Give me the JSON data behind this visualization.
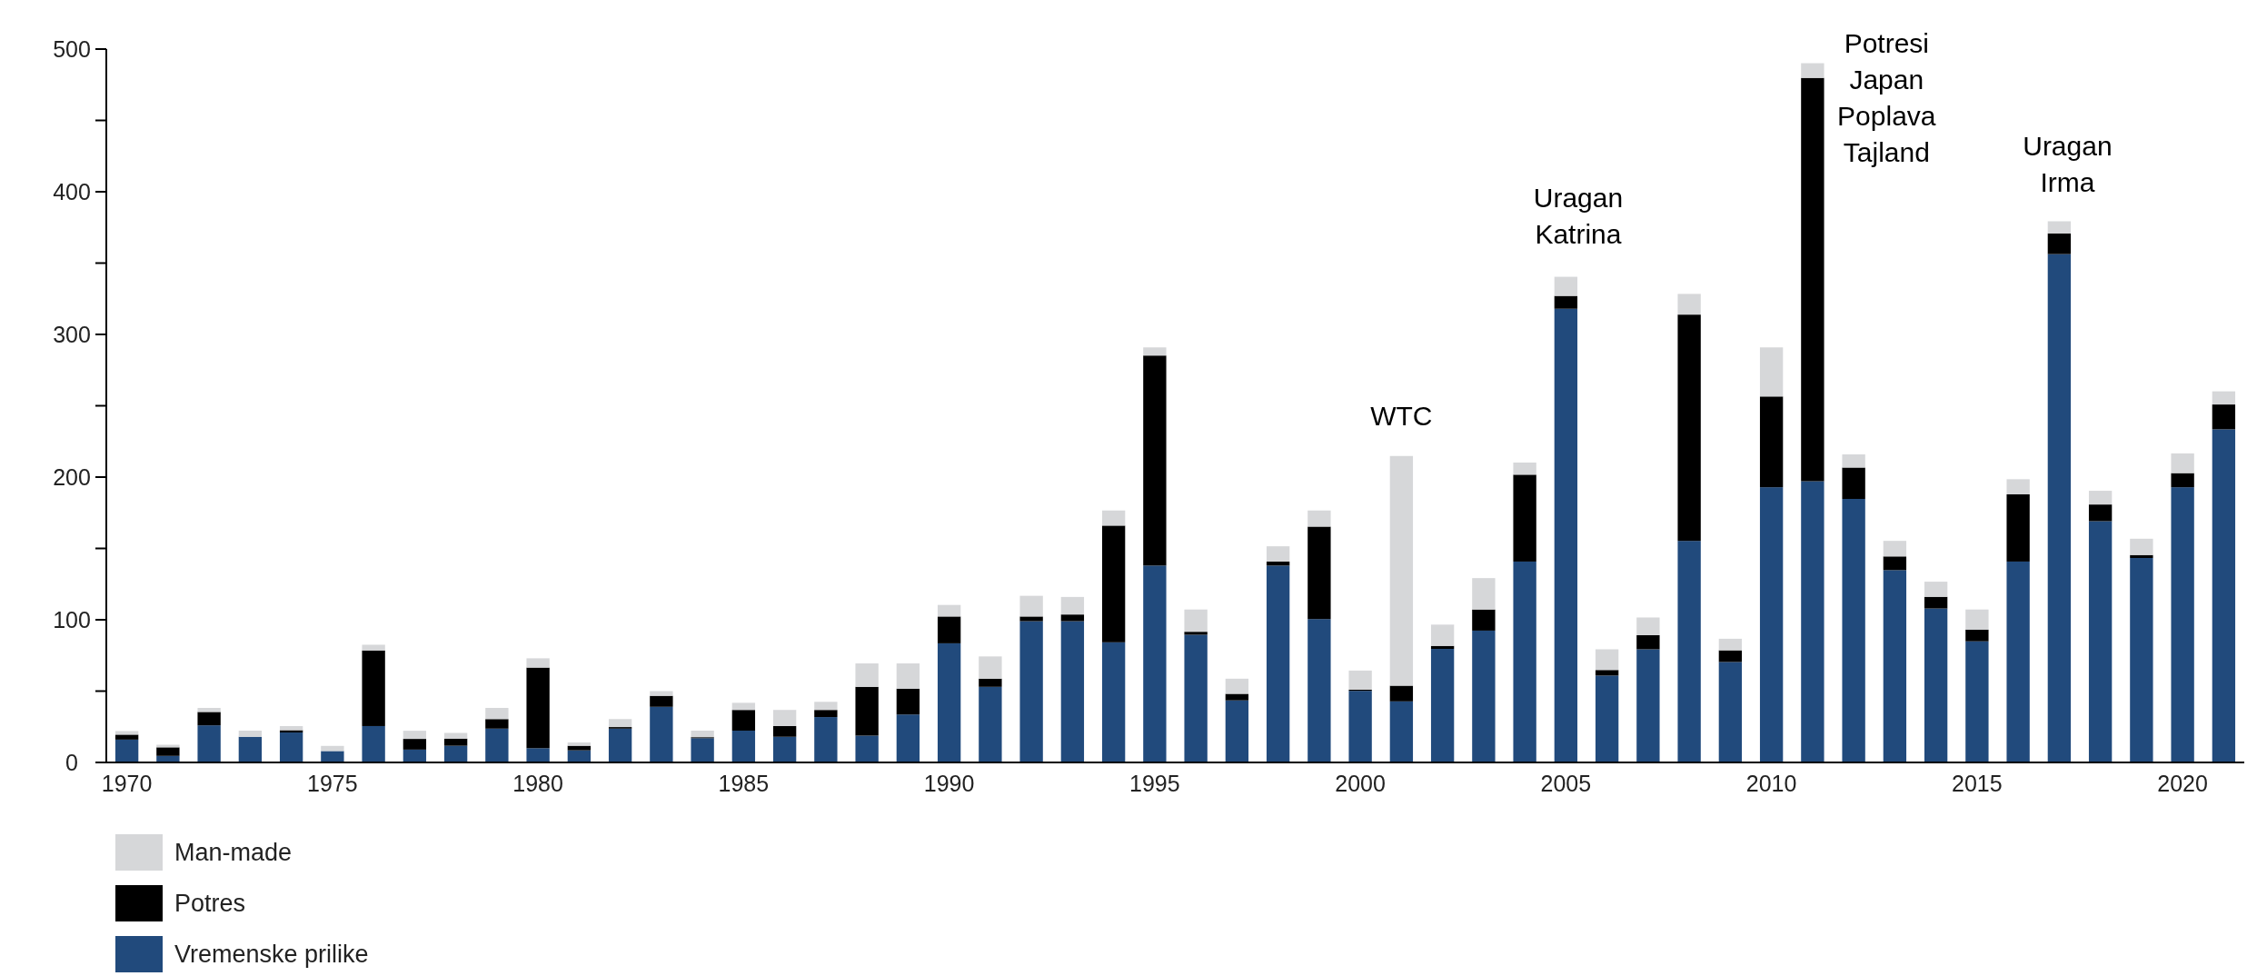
{
  "chart_data": {
    "type": "bar",
    "stacked": true,
    "categories": [
      "1970",
      null,
      null,
      null,
      null,
      "1975",
      null,
      null,
      null,
      null,
      "1980",
      null,
      null,
      null,
      null,
      "1985",
      null,
      null,
      null,
      null,
      "1990",
      null,
      null,
      null,
      null,
      "1995",
      null,
      null,
      null,
      null,
      "2000",
      null,
      null,
      null,
      null,
      "2005",
      null,
      null,
      null,
      null,
      "2010",
      null,
      null,
      null,
      null,
      "2015",
      null,
      null,
      null,
      null,
      "2020",
      null
    ],
    "series": [
      {
        "name": "Vremenske prilike",
        "color": "#214a7c",
        "values": [
          16,
          4.6,
          26,
          18,
          21,
          8,
          25.5,
          9,
          11.7,
          23.7,
          10,
          8.5,
          23.7,
          39,
          17,
          22.3,
          18,
          31.8,
          18.8,
          33.6,
          83.5,
          53,
          99,
          99,
          84.2,
          138,
          89.5,
          43.5,
          138,
          100.5,
          50.2,
          42.8,
          79.6,
          92.4,
          140.8,
          318,
          60.9,
          79.3,
          155.3,
          70.4,
          192.9,
          197.1,
          184.7,
          134.8,
          107.9,
          84.9,
          140.8,
          356.3,
          169.1,
          143.3,
          192.9,
          233.5
        ]
      },
      {
        "name": "Potres",
        "color": "#000000",
        "values": [
          3.5,
          6,
          9.4,
          0,
          1.6,
          0,
          53,
          7.5,
          5,
          6.7,
          56.5,
          3.2,
          1.1,
          7.7,
          0.7,
          14.5,
          7.5,
          5,
          34.2,
          18.1,
          18.8,
          5.7,
          3.3,
          4.7,
          81.8,
          147.2,
          2.1,
          4.6,
          2.8,
          64.8,
          0.8,
          11,
          2.1,
          14.8,
          60.9,
          9,
          3.9,
          9.9,
          158.6,
          8.2,
          63.6,
          282.7,
          22,
          9.6,
          8.2,
          8.2,
          47.1,
          14.5,
          11.7,
          2.1,
          9.9,
          17.4
        ]
      },
      {
        "name": "Man-made",
        "color": "#d6d7d9",
        "values": [
          2.5,
          1.8,
          2.8,
          4.3,
          2.9,
          3.6,
          4,
          5.7,
          4,
          7.8,
          6.5,
          2.3,
          5.6,
          3.3,
          4.6,
          5,
          11.3,
          5.7,
          16.4,
          17.7,
          8.1,
          15.6,
          14.5,
          12.3,
          10.6,
          5.7,
          15.6,
          10.6,
          10.7,
          11.3,
          13.4,
          161,
          14.9,
          22,
          8.5,
          13.4,
          14.5,
          12.4,
          14.5,
          8.1,
          34.4,
          10.3,
          9.2,
          10.9,
          10.6,
          14.1,
          10.6,
          8.5,
          9.6,
          11.4,
          13.8,
          9.2
        ]
      }
    ],
    "ylim": [
      0,
      500
    ],
    "yticks": [
      0,
      {
        "value": 50,
        "label": null
      },
      100,
      {
        "value": 150,
        "label": null
      },
      200,
      {
        "value": 250,
        "label": null
      },
      300,
      {
        "value": 350,
        "label": null
      },
      400,
      {
        "value": 450,
        "label": null
      },
      500
    ],
    "annotations": [
      "WTC",
      "Uragan\nKatrina",
      "Potresi\nJapan\nPoplava\nTajland",
      "Uragan\nIrma"
    ],
    "legend": "bottom left"
  }
}
